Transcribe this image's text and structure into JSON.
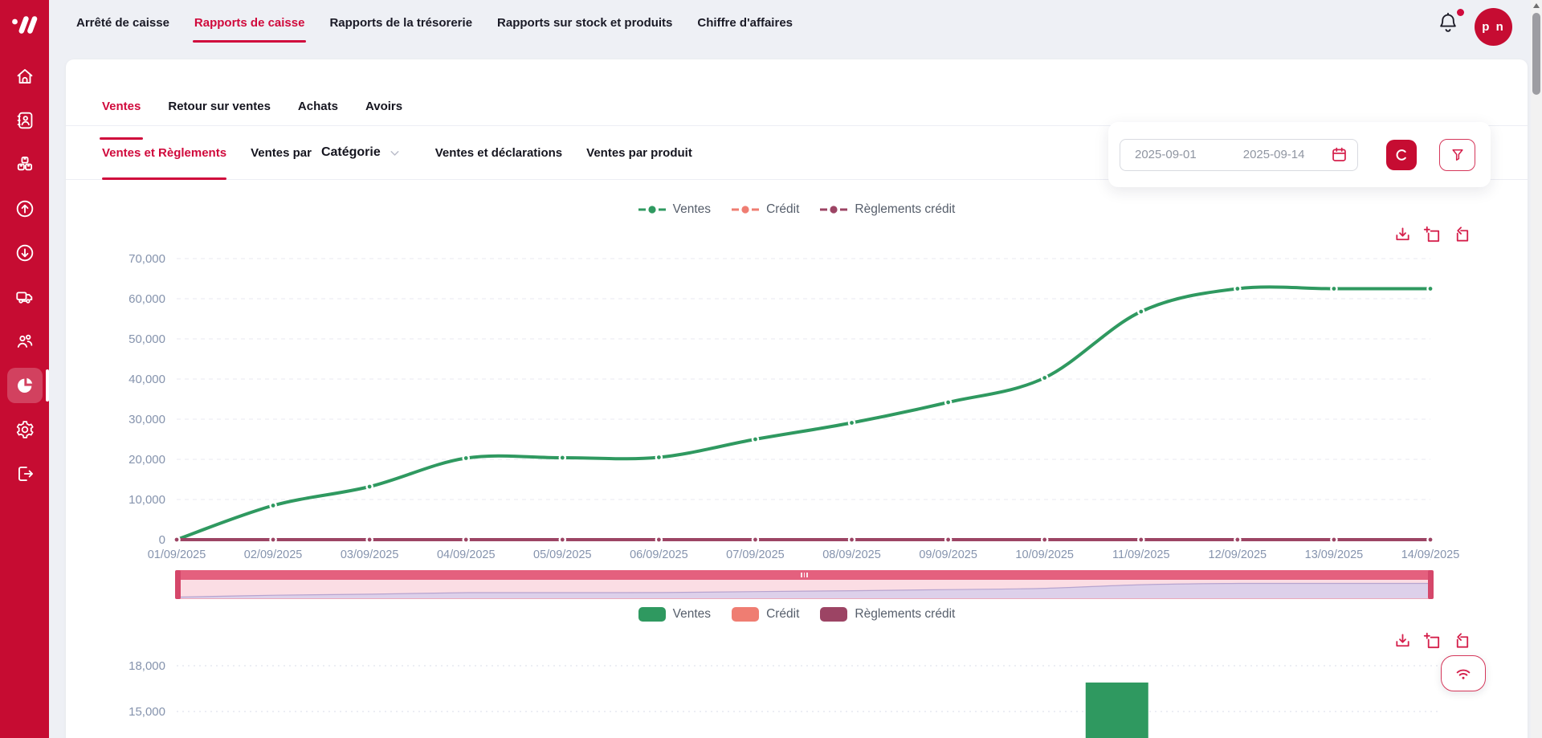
{
  "topnav": {
    "items": [
      {
        "label": "Arrêté de caisse",
        "active": false
      },
      {
        "label": "Rapports de caisse",
        "active": true
      },
      {
        "label": "Rapports de la trésorerie",
        "active": false
      },
      {
        "label": "Rapports sur stock et produits",
        "active": false
      },
      {
        "label": "Chiffre d'affaires",
        "active": false
      }
    ]
  },
  "user": {
    "initials": "p n",
    "has_notification": true
  },
  "sidebar": {
    "items": [
      {
        "icon": "home-icon",
        "active": false
      },
      {
        "icon": "contact-card-icon",
        "active": false
      },
      {
        "icon": "products-boxes-icon",
        "active": false
      },
      {
        "icon": "arrow-up-circle-icon",
        "active": false
      },
      {
        "icon": "arrow-down-circle-icon",
        "active": false
      },
      {
        "icon": "delivery-truck-icon",
        "active": false
      },
      {
        "icon": "customers-icon",
        "active": false
      },
      {
        "icon": "pie-chart-reports-icon",
        "active": true
      },
      {
        "icon": "settings-gear-icon",
        "active": false
      },
      {
        "icon": "logout-icon",
        "active": false
      }
    ]
  },
  "tabs": [
    {
      "label": "Ventes",
      "active": true
    },
    {
      "label": "Retour sur ventes",
      "active": false
    },
    {
      "label": "Achats",
      "active": false
    },
    {
      "label": "Avoirs",
      "active": false
    }
  ],
  "subtabs": {
    "items": [
      {
        "label": "Ventes et Règlements",
        "active": true
      },
      {
        "label": "Ventes par",
        "active": false
      },
      {
        "label": "Ventes et déclarations",
        "active": false
      },
      {
        "label": "Ventes par produit",
        "active": false
      }
    ],
    "category_dropdown": {
      "label": "Catégorie"
    }
  },
  "filter": {
    "start_date": "2025-09-01",
    "end_date": "2025-09-14",
    "refresh_icon": "refresh-c-icon",
    "filter_icon": "funnel-icon"
  },
  "colors": {
    "primary": "#c60c32",
    "accent": "#d00a3c",
    "ventes": "#2f9960",
    "credit": "#ef7d72",
    "reglements_credit": "#9c4464",
    "axis_label": "#8593ad",
    "grid": "#e8eaf1"
  },
  "chart_data": [
    {
      "type": "line",
      "categories": [
        "01/09/2025",
        "02/09/2025",
        "03/09/2025",
        "04/09/2025",
        "05/09/2025",
        "06/09/2025",
        "07/09/2025",
        "08/09/2025",
        "09/09/2025",
        "10/09/2025",
        "11/09/2025",
        "12/09/2025",
        "13/09/2025",
        "14/09/2025"
      ],
      "series": [
        {
          "name": "Ventes",
          "color": "#2f9960",
          "values": [
            0,
            8500,
            13200,
            20300,
            20400,
            20500,
            25000,
            29100,
            34200,
            40300,
            56800,
            62500,
            62500,
            62500
          ]
        },
        {
          "name": "Crédit",
          "color": "#ef7d72",
          "values": [
            0,
            0,
            0,
            0,
            0,
            0,
            0,
            0,
            0,
            0,
            0,
            0,
            0,
            0
          ]
        },
        {
          "name": "Règlements crédit",
          "color": "#9c4464",
          "values": [
            0,
            0,
            0,
            0,
            0,
            0,
            0,
            0,
            0,
            0,
            0,
            0,
            0,
            0
          ]
        }
      ],
      "ylim": [
        0,
        70000
      ],
      "ytick_step": 10000,
      "grid": "dashed-horizontal",
      "legend_position": "top",
      "datazoom_slider": true
    },
    {
      "type": "bar",
      "categories": [
        "01/09/2025",
        "02/09/2025",
        "03/09/2025",
        "04/09/2025",
        "05/09/2025",
        "06/09/2025",
        "07/09/2025",
        "08/09/2025",
        "09/09/2025",
        "10/09/2025",
        "11/09/2025",
        "12/09/2025",
        "13/09/2025",
        "14/09/2025"
      ],
      "series": [
        {
          "name": "Ventes",
          "color": "#2f9960",
          "values": [
            null,
            null,
            null,
            null,
            null,
            null,
            null,
            null,
            null,
            null,
            16900,
            null,
            null,
            null
          ]
        },
        {
          "name": "Crédit",
          "color": "#ef7d72",
          "values": [
            null,
            null,
            null,
            null,
            null,
            null,
            null,
            null,
            null,
            null,
            null,
            null,
            null,
            null
          ]
        },
        {
          "name": "Règlements crédit",
          "color": "#9c4464",
          "values": [
            null,
            null,
            null,
            null,
            null,
            null,
            null,
            null,
            null,
            null,
            null,
            null,
            null,
            null
          ]
        }
      ],
      "visible_yticks": [
        18000,
        15000
      ],
      "clipped_at_viewport_bottom": true
    }
  ]
}
